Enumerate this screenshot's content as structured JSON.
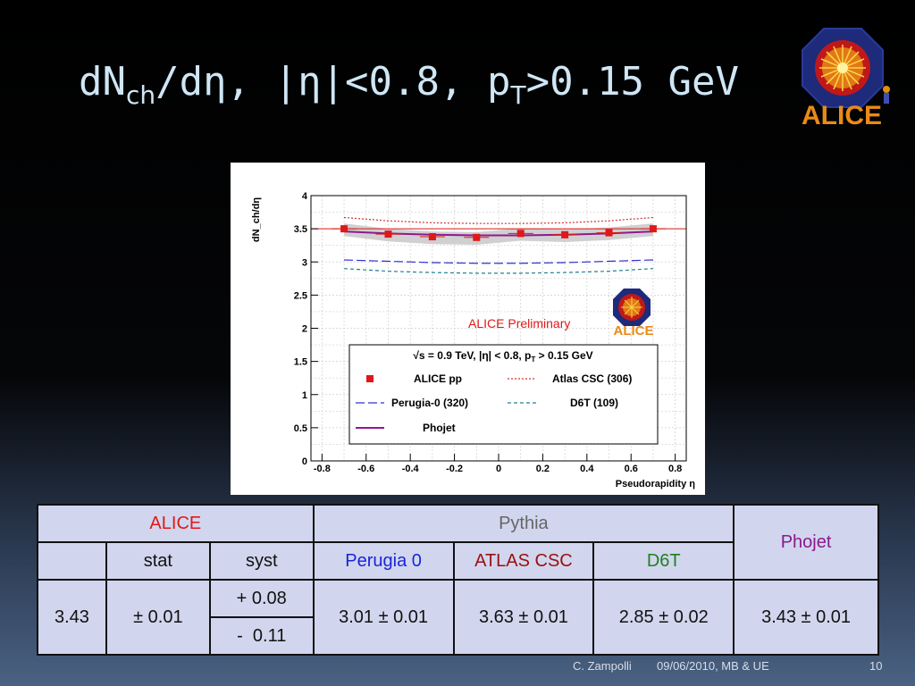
{
  "slide": {
    "title_main": "dN",
    "title_sub": "ch",
    "title_rest": "/dη, |η|<0.8, p",
    "title_sub2": "T",
    "title_end": ">0.15 GeV",
    "logo_text": "ALICE",
    "footer_author": "C. Zampolli",
    "footer_event": "09/06/2010, MB & UE",
    "page_number": "10"
  },
  "chart_data": {
    "type": "scatter",
    "xlabel": "Pseudorapidity η",
    "ylabel": "dN_ch/dη",
    "xlim": [
      -0.85,
      0.85
    ],
    "ylim": [
      0,
      4
    ],
    "x_ticks": [
      "-0.8",
      "-0.6",
      "-0.4",
      "-0.2",
      "0",
      "0.2",
      "0.4",
      "0.6",
      "0.8"
    ],
    "y_ticks": [
      "0",
      "0.5",
      "1",
      "1.5",
      "2",
      "2.5",
      "3",
      "3.5",
      "4"
    ],
    "grid": true,
    "annotation": "ALICE Preliminary",
    "logo_text": "ALICE",
    "legend_header": "√s = 0.9 TeV, |η| < 0.8, p_T > 0.15 GeV",
    "legend_position": "bottom-center",
    "series": [
      {
        "name": "ALICE pp",
        "style": "markers",
        "color": "#e01818",
        "x": [
          -0.7,
          -0.5,
          -0.3,
          -0.1,
          0.1,
          0.3,
          0.5,
          0.7
        ],
        "y": [
          3.5,
          3.42,
          3.38,
          3.37,
          3.43,
          3.41,
          3.44,
          3.5
        ]
      },
      {
        "name": "Atlas CSC (306)",
        "style": "dotted",
        "color": "#d03030",
        "x": [
          -0.7,
          -0.5,
          -0.3,
          -0.1,
          0.1,
          0.3,
          0.5,
          0.7
        ],
        "y": [
          3.67,
          3.62,
          3.59,
          3.58,
          3.58,
          3.59,
          3.62,
          3.67
        ]
      },
      {
        "name": "Perugia-0 (320)",
        "style": "longdash",
        "color": "#3030d0",
        "x": [
          -0.7,
          -0.5,
          -0.3,
          -0.1,
          0.1,
          0.3,
          0.5,
          0.7
        ],
        "y": [
          3.03,
          3.01,
          2.99,
          2.98,
          2.98,
          2.99,
          3.01,
          3.03
        ]
      },
      {
        "name": "D6T (109)",
        "style": "shortdash",
        "color": "#208090",
        "x": [
          -0.7,
          -0.5,
          -0.3,
          -0.1,
          0.1,
          0.3,
          0.5,
          0.7
        ],
        "y": [
          2.9,
          2.86,
          2.84,
          2.83,
          2.83,
          2.84,
          2.86,
          2.9
        ]
      },
      {
        "name": "Phojet",
        "style": "solid",
        "color": "#901890",
        "x": [
          -0.7,
          -0.5,
          -0.3,
          -0.1,
          0.1,
          0.3,
          0.5,
          0.7
        ],
        "y": [
          3.46,
          3.43,
          3.41,
          3.4,
          3.4,
          3.41,
          3.43,
          3.46
        ]
      }
    ]
  },
  "table": {
    "header_alice": "ALICE",
    "header_pythia": "Pythia",
    "header_phojet": "Phojet",
    "col_stat": "stat",
    "col_syst": "syst",
    "col_perugia": "Perugia 0",
    "col_atlas": "ATLAS CSC",
    "col_d6t": "D6T",
    "val_alice": "3.43",
    "val_stat": "± 0.01",
    "val_syst_plus": "+ 0.08",
    "val_syst_minus": "-  0.11",
    "val_perugia": "3.01 ± 0.01",
    "val_atlas": "3.63 ± 0.01",
    "val_d6t": "2.85 ± 0.02",
    "val_phojet": "3.43 ± 0.01"
  }
}
